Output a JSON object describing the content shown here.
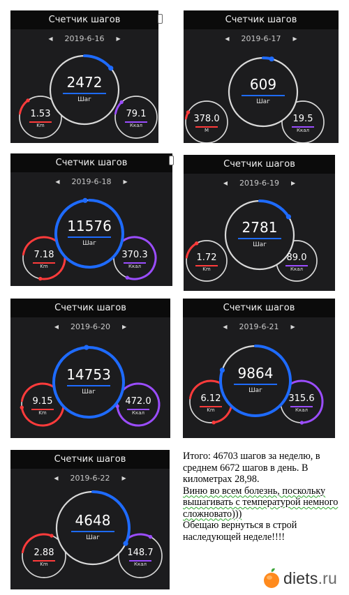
{
  "app_title": "Счетчик шагов",
  "steps_label": "Шаг",
  "colors": {
    "steps_ring": "#1e6bff",
    "distance_ring": "#ff3b3b",
    "calories_ring": "#9b4dff",
    "track": "#d9d9d9",
    "card_bg": "#1c1c1e"
  },
  "cards": [
    {
      "date": "2019-6-16",
      "steps": "2472",
      "distance": "1.53",
      "distance_unit": "Km",
      "calories": "79.1",
      "calories_unit": "Ккал"
    },
    {
      "date": "2019-6-17",
      "steps": "609",
      "distance": "378.0",
      "distance_unit": "M",
      "calories": "19.5",
      "calories_unit": "Ккал"
    },
    {
      "date": "2019-6-18",
      "steps": "11576",
      "distance": "7.18",
      "distance_unit": "Km",
      "calories": "370.3",
      "calories_unit": "Ккал"
    },
    {
      "date": "2019-6-19",
      "steps": "2781",
      "distance": "1.72",
      "distance_unit": "Km",
      "calories": "89.0",
      "calories_unit": "Ккал"
    },
    {
      "date": "2019-6-20",
      "steps": "14753",
      "distance": "9.15",
      "distance_unit": "Km",
      "calories": "472.0",
      "calories_unit": "Ккал"
    },
    {
      "date": "2019-6-21",
      "steps": "9864",
      "distance": "6.12",
      "distance_unit": "Km",
      "calories": "315.6",
      "calories_unit": "Ккал"
    },
    {
      "date": "2019-6-22",
      "steps": "4648",
      "distance": "2.88",
      "distance_unit": "Km",
      "calories": "148.7",
      "calories_unit": "Ккал"
    }
  ],
  "note": {
    "line1": "Итого: 46703 шагов за неделю, в среднем 6672 шагов в день. В километрах 28,98.",
    "line2a": "Виню во всем болезнь, поскольку вышагивать с температурой немного сложновато)))",
    "line3": "Обещаю вернуться в строй наследующей неделе!!!!"
  },
  "logo": {
    "name": "diets",
    "domain": ".ru"
  }
}
